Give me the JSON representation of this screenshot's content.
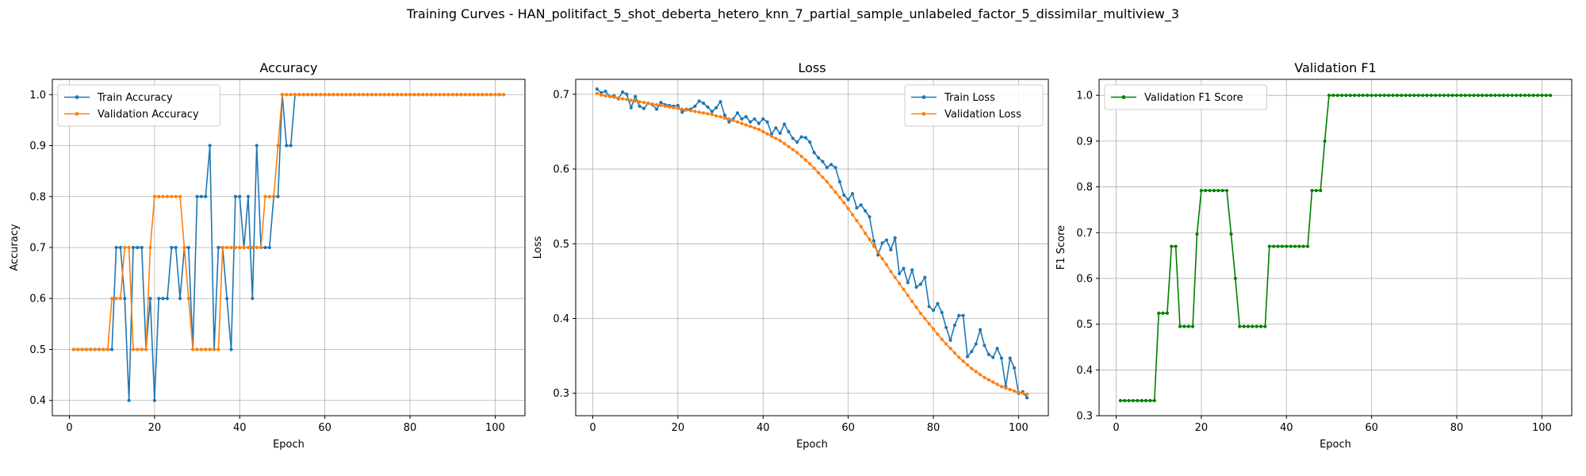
{
  "figure": {
    "suptitle": "Training Curves - HAN_politifact_5_shot_deberta_hetero_knn_7_partial_sample_unlabeled_factor_5_dissimilar_multiview_3"
  },
  "chart_data": [
    {
      "type": "line",
      "title": "Accuracy",
      "xlabel": "Epoch",
      "ylabel": "Accuracy",
      "xlim": [
        -4,
        107
      ],
      "ylim": [
        0.37,
        1.03
      ],
      "xticks": [
        0,
        20,
        40,
        60,
        80,
        100
      ],
      "yticks": [
        0.4,
        0.5,
        0.6,
        0.7,
        0.8,
        0.9,
        1.0
      ],
      "ytick_labels": [
        "0.4",
        "0.5",
        "0.6",
        "0.7",
        "0.8",
        "0.9",
        "1.0"
      ],
      "grid": true,
      "legend_loc": "upper-left",
      "series": [
        {
          "name": "Train Accuracy",
          "color": "#1f77b4",
          "x_start": 1,
          "values": [
            0.5,
            0.5,
            0.5,
            0.5,
            0.5,
            0.5,
            0.5,
            0.5,
            0.5,
            0.5,
            0.7,
            0.7,
            0.6,
            0.4,
            0.7,
            0.7,
            0.7,
            0.5,
            0.6,
            0.4,
            0.6,
            0.6,
            0.6,
            0.7,
            0.7,
            0.6,
            0.7,
            0.7,
            0.5,
            0.8,
            0.8,
            0.8,
            0.9,
            0.5,
            0.7,
            0.7,
            0.6,
            0.5,
            0.8,
            0.8,
            0.7,
            0.8,
            0.6,
            0.9,
            0.7,
            0.7,
            0.7,
            0.8,
            0.8,
            1.0,
            0.9,
            0.9,
            1.0,
            1.0,
            1.0,
            1.0,
            1.0,
            1.0,
            1.0,
            1.0,
            1.0,
            1.0,
            1.0,
            1.0,
            1.0,
            1.0,
            1.0,
            1.0,
            1.0,
            1.0,
            1.0,
            1.0,
            1.0,
            1.0,
            1.0,
            1.0,
            1.0,
            1.0,
            1.0,
            1.0,
            1.0,
            1.0,
            1.0,
            1.0,
            1.0,
            1.0,
            1.0,
            1.0,
            1.0,
            1.0,
            1.0,
            1.0,
            1.0,
            1.0,
            1.0,
            1.0,
            1.0,
            1.0,
            1.0,
            1.0,
            1.0,
            1.0
          ]
        },
        {
          "name": "Validation Accuracy",
          "color": "#ff7f0e",
          "x_start": 1,
          "values": [
            0.5,
            0.5,
            0.5,
            0.5,
            0.5,
            0.5,
            0.5,
            0.5,
            0.5,
            0.6,
            0.6,
            0.6,
            0.7,
            0.7,
            0.5,
            0.5,
            0.5,
            0.5,
            0.7,
            0.8,
            0.8,
            0.8,
            0.8,
            0.8,
            0.8,
            0.8,
            0.7,
            0.6,
            0.5,
            0.5,
            0.5,
            0.5,
            0.5,
            0.5,
            0.5,
            0.7,
            0.7,
            0.7,
            0.7,
            0.7,
            0.7,
            0.7,
            0.7,
            0.7,
            0.7,
            0.8,
            0.8,
            0.8,
            0.9,
            1.0,
            1.0,
            1.0,
            1.0,
            1.0,
            1.0,
            1.0,
            1.0,
            1.0,
            1.0,
            1.0,
            1.0,
            1.0,
            1.0,
            1.0,
            1.0,
            1.0,
            1.0,
            1.0,
            1.0,
            1.0,
            1.0,
            1.0,
            1.0,
            1.0,
            1.0,
            1.0,
            1.0,
            1.0,
            1.0,
            1.0,
            1.0,
            1.0,
            1.0,
            1.0,
            1.0,
            1.0,
            1.0,
            1.0,
            1.0,
            1.0,
            1.0,
            1.0,
            1.0,
            1.0,
            1.0,
            1.0,
            1.0,
            1.0,
            1.0,
            1.0,
            1.0,
            1.0
          ]
        }
      ]
    },
    {
      "type": "line",
      "title": "Loss",
      "xlabel": "Epoch",
      "ylabel": "Loss",
      "xlim": [
        -4,
        107
      ],
      "ylim": [
        0.27,
        0.72
      ],
      "xticks": [
        0,
        20,
        40,
        60,
        80,
        100
      ],
      "yticks": [
        0.3,
        0.4,
        0.5,
        0.6,
        0.7
      ],
      "ytick_labels": [
        "0.3",
        "0.4",
        "0.5",
        "0.6",
        "0.7"
      ],
      "grid": true,
      "legend_loc": "upper-right",
      "series": [
        {
          "name": "Train Loss",
          "color": "#1f77b4",
          "x_start": 1,
          "values": [
            0.707,
            0.702,
            0.704,
            0.697,
            0.698,
            0.694,
            0.703,
            0.7,
            0.682,
            0.697,
            0.684,
            0.681,
            0.688,
            0.686,
            0.68,
            0.689,
            0.686,
            0.685,
            0.684,
            0.685,
            0.676,
            0.68,
            0.68,
            0.684,
            0.691,
            0.688,
            0.683,
            0.677,
            0.682,
            0.69,
            0.672,
            0.663,
            0.667,
            0.675,
            0.667,
            0.67,
            0.663,
            0.667,
            0.661,
            0.667,
            0.663,
            0.647,
            0.655,
            0.648,
            0.66,
            0.65,
            0.641,
            0.636,
            0.643,
            0.642,
            0.636,
            0.622,
            0.615,
            0.61,
            0.602,
            0.606,
            0.602,
            0.583,
            0.565,
            0.559,
            0.567,
            0.548,
            0.552,
            0.544,
            0.536,
            0.504,
            0.485,
            0.501,
            0.505,
            0.492,
            0.508,
            0.46,
            0.467,
            0.448,
            0.465,
            0.442,
            0.446,
            0.455,
            0.416,
            0.411,
            0.42,
            0.408,
            0.388,
            0.371,
            0.391,
            0.404,
            0.404,
            0.349,
            0.356,
            0.366,
            0.385,
            0.364,
            0.352,
            0.348,
            0.36,
            0.347,
            0.309,
            0.347,
            0.334,
            0.3,
            0.302,
            0.294
          ]
        },
        {
          "name": "Validation Loss",
          "color": "#ff7f0e",
          "x_start": 1,
          "values": [
            0.701,
            0.699,
            0.698,
            0.697,
            0.696,
            0.695,
            0.694,
            0.693,
            0.692,
            0.691,
            0.69,
            0.689,
            0.688,
            0.687,
            0.686,
            0.685,
            0.684,
            0.683,
            0.682,
            0.681,
            0.68,
            0.679,
            0.678,
            0.677,
            0.676,
            0.675,
            0.674,
            0.673,
            0.671,
            0.67,
            0.668,
            0.667,
            0.665,
            0.663,
            0.661,
            0.659,
            0.657,
            0.655,
            0.653,
            0.65,
            0.647,
            0.644,
            0.641,
            0.638,
            0.634,
            0.63,
            0.626,
            0.622,
            0.617,
            0.612,
            0.607,
            0.601,
            0.595,
            0.589,
            0.583,
            0.576,
            0.569,
            0.562,
            0.555,
            0.547,
            0.539,
            0.531,
            0.523,
            0.514,
            0.506,
            0.497,
            0.489,
            0.48,
            0.472,
            0.463,
            0.455,
            0.447,
            0.439,
            0.431,
            0.423,
            0.415,
            0.407,
            0.4,
            0.393,
            0.386,
            0.379,
            0.372,
            0.366,
            0.36,
            0.354,
            0.348,
            0.343,
            0.338,
            0.333,
            0.329,
            0.325,
            0.321,
            0.318,
            0.315,
            0.312,
            0.309,
            0.307,
            0.305,
            0.303,
            0.301,
            0.3,
            0.299
          ]
        }
      ]
    },
    {
      "type": "line",
      "title": "Validation F1",
      "xlabel": "Epoch",
      "ylabel": "F1 Score",
      "xlim": [
        -4,
        107
      ],
      "ylim": [
        0.3,
        1.035
      ],
      "xticks": [
        0,
        20,
        40,
        60,
        80,
        100
      ],
      "yticks": [
        0.3,
        0.4,
        0.5,
        0.6,
        0.7,
        0.8,
        0.9,
        1.0
      ],
      "ytick_labels": [
        "0.3",
        "0.4",
        "0.5",
        "0.6",
        "0.7",
        "0.8",
        "0.9",
        "1.0"
      ],
      "grid": true,
      "legend_loc": "upper-left",
      "series": [
        {
          "name": "Validation F1 Score",
          "color": "#008000",
          "x_start": 1,
          "values": [
            0.333,
            0.333,
            0.333,
            0.333,
            0.333,
            0.333,
            0.333,
            0.333,
            0.333,
            0.524,
            0.524,
            0.524,
            0.67,
            0.67,
            0.495,
            0.495,
            0.495,
            0.495,
            0.697,
            0.792,
            0.792,
            0.792,
            0.792,
            0.792,
            0.792,
            0.792,
            0.697,
            0.6,
            0.495,
            0.495,
            0.495,
            0.495,
            0.495,
            0.495,
            0.495,
            0.67,
            0.67,
            0.67,
            0.67,
            0.67,
            0.67,
            0.67,
            0.67,
            0.67,
            0.67,
            0.792,
            0.792,
            0.792,
            0.9,
            1.0,
            1.0,
            1.0,
            1.0,
            1.0,
            1.0,
            1.0,
            1.0,
            1.0,
            1.0,
            1.0,
            1.0,
            1.0,
            1.0,
            1.0,
            1.0,
            1.0,
            1.0,
            1.0,
            1.0,
            1.0,
            1.0,
            1.0,
            1.0,
            1.0,
            1.0,
            1.0,
            1.0,
            1.0,
            1.0,
            1.0,
            1.0,
            1.0,
            1.0,
            1.0,
            1.0,
            1.0,
            1.0,
            1.0,
            1.0,
            1.0,
            1.0,
            1.0,
            1.0,
            1.0,
            1.0,
            1.0,
            1.0,
            1.0,
            1.0,
            1.0,
            1.0,
            1.0
          ]
        }
      ]
    }
  ]
}
